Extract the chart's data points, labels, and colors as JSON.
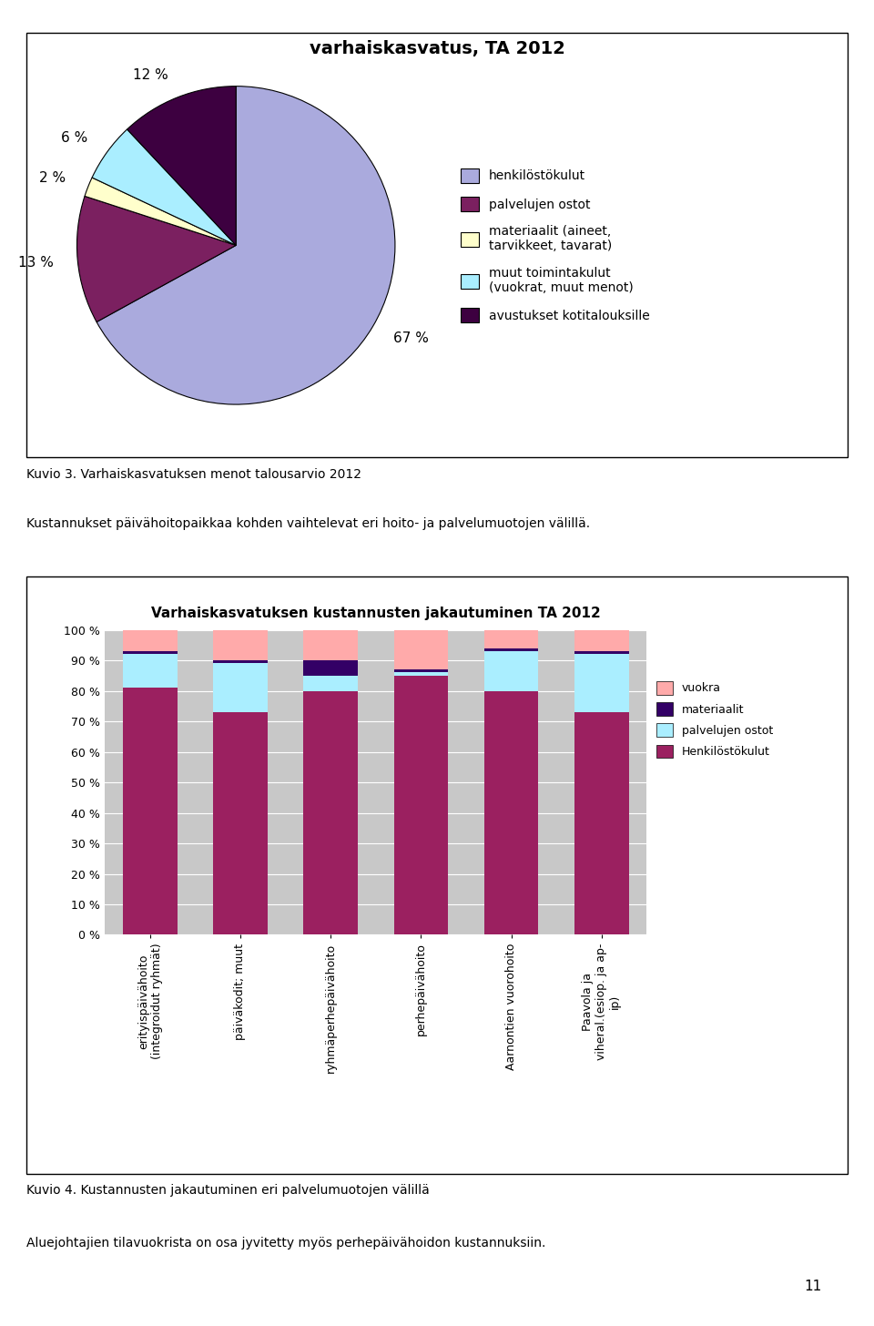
{
  "pie_title": "varhaiskasvatus, TA 2012",
  "pie_values": [
    67,
    13,
    2,
    6,
    12
  ],
  "pie_labels": [
    "67 %",
    "13 %",
    "2 %",
    "6 %",
    "12 %"
  ],
  "pie_colors": [
    "#aaaadd",
    "#7b2060",
    "#ffffcc",
    "#aaeeff",
    "#3d0040"
  ],
  "pie_legend_labels": [
    "henkilöstökulut",
    "palvelujen ostot",
    "materiaalit (aineet,\ntarvikkeet, tavarat)",
    "muut toimintakulut\n(vuokrat, muut menot)",
    "avustukset kotitalouksille"
  ],
  "pie_legend_colors": [
    "#aaaadd",
    "#7b2060",
    "#ffffcc",
    "#aaeeff",
    "#3d0040"
  ],
  "bar_title": "Varhaiskasvatuksen kustannusten jakautuminen TA 2012",
  "bar_categories": [
    "erityispäivähoito\n(integroidut ryhmät)",
    "päiväkodit; muut",
    "ryhmäperhepäivähoito",
    "perhepäivähoito",
    "Aarnontien vuorohoito",
    "Paavola ja\nviheral.(esiop. ja ap-\nip)"
  ],
  "bar_henkilosto": [
    81,
    73,
    80,
    85,
    80,
    73
  ],
  "bar_palvelujen_ostot": [
    11,
    16,
    5,
    1,
    13,
    19
  ],
  "bar_materiaalit": [
    1,
    1,
    5,
    1,
    1,
    1
  ],
  "bar_vuokra": [
    7,
    10,
    10,
    13,
    6,
    7
  ],
  "bar_colors": {
    "henkilosto": "#9b2060",
    "palvelujen_ostot": "#aaeeff",
    "materiaalit": "#330066",
    "vuokra": "#ffaaaa"
  },
  "bar_legend_labels": [
    "vuokra",
    "materiaalit",
    "palvelujen ostot",
    "Henkilöstökulut"
  ],
  "caption1": "Kuvio 3. Varhaiskasvatuksen menot talousarvio 2012",
  "caption2": "Kustannukset päivähoitopaikkaa kohden vaihtelevat eri hoito- ja palvelumuotojen välillä.",
  "caption3": "Kuvio 4. Kustannusten jakautuminen eri palvelumuotojen välillä",
  "caption4": "Aluejohtajien tilavuokrista on osa jyvitetty myös perhepäivähoidon kustannuksiin.",
  "page_number": "11",
  "bg_color": "#ffffff",
  "grid_color": "#c0c0c0",
  "bar_bg_color": "#c8c8c8"
}
